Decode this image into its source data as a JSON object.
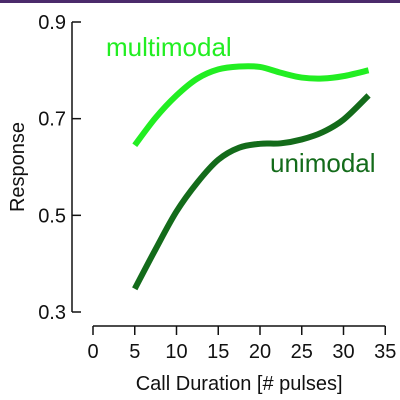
{
  "chart_data": {
    "type": "line",
    "xlabel": "Call Duration [# pulses]",
    "ylabel": "Response",
    "xlim": [
      0,
      35
    ],
    "ylim": [
      0.3,
      0.9
    ],
    "x_ticks": [
      "0",
      "5",
      "10",
      "15",
      "20",
      "25",
      "30",
      "35"
    ],
    "y_ticks": [
      "0.3",
      "0.5",
      "0.7",
      "0.9"
    ],
    "grid": false,
    "series": [
      {
        "name": "multimodal",
        "color": "#22ee22",
        "x": [
          5,
          7.5,
          10,
          12.5,
          15,
          17.5,
          20,
          22.5,
          25,
          27.5,
          30,
          33
        ],
        "y": [
          0.645,
          0.702,
          0.748,
          0.783,
          0.802,
          0.808,
          0.807,
          0.795,
          0.785,
          0.783,
          0.788,
          0.8
        ]
      },
      {
        "name": "unimodal",
        "color": "#136b1a",
        "x": [
          5,
          7.5,
          10,
          12.5,
          15,
          17.5,
          20,
          22.5,
          25,
          27.5,
          30,
          33
        ],
        "y": [
          0.348,
          0.43,
          0.508,
          0.568,
          0.615,
          0.64,
          0.648,
          0.649,
          0.657,
          0.672,
          0.698,
          0.748
        ]
      }
    ]
  }
}
